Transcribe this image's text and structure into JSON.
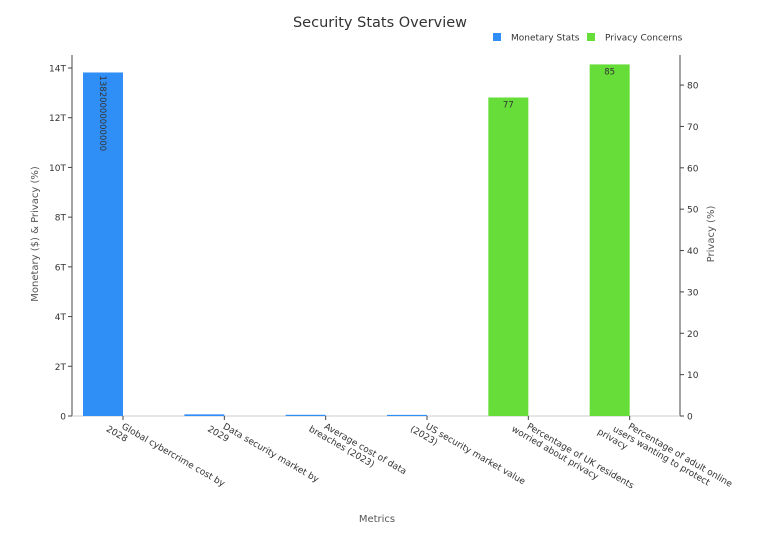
{
  "chart_data": {
    "type": "bar",
    "title": "Security Stats Overview",
    "xlabel": "Metrics",
    "ylabel_left": "Monetary ($) & Privacy (%)",
    "ylabel_right": "Privacy (%)",
    "categories": [
      [
        "Global cybercrime cost by",
        "2028"
      ],
      [
        "Data security market by",
        "2029"
      ],
      [
        "Average cost of data",
        "breaches (2023)"
      ],
      [
        "US security market value",
        "(2023)"
      ],
      [
        "Percentage of UK residents",
        "worried about privacy"
      ],
      [
        "Percentage of adult online",
        "users wanting to protect",
        "privacy"
      ]
    ],
    "series": [
      {
        "name": "Monetary Stats",
        "color": "#2f8ff7",
        "axis": "left",
        "values": [
          13820000000000,
          66000000000,
          4450000,
          46000000000,
          null,
          null
        ],
        "data_labels": [
          "13820000000000",
          "",
          "",
          "",
          "",
          ""
        ]
      },
      {
        "name": "Privacy Concerns",
        "color": "#66dd38",
        "axis": "right",
        "values": [
          null,
          null,
          null,
          null,
          77,
          85
        ],
        "data_labels": [
          "",
          "",
          "",
          "",
          "77",
          "85"
        ]
      }
    ],
    "y_left": {
      "min": 0,
      "max": 14000000000000,
      "ticks": [
        0,
        2000000000000,
        4000000000000,
        6000000000000,
        8000000000000,
        10000000000000,
        12000000000000,
        14000000000000
      ],
      "tick_labels": [
        "0",
        "2T",
        "4T",
        "6T",
        "8T",
        "10T",
        "12T",
        "14T"
      ]
    },
    "y_right": {
      "min": 0,
      "max": 88,
      "ticks": [
        0,
        10,
        20,
        30,
        40,
        50,
        60,
        70,
        80
      ],
      "tick_labels": [
        "0",
        "10",
        "20",
        "30",
        "40",
        "50",
        "60",
        "70",
        "80"
      ]
    },
    "grid": false,
    "legend_position": "top-right"
  }
}
